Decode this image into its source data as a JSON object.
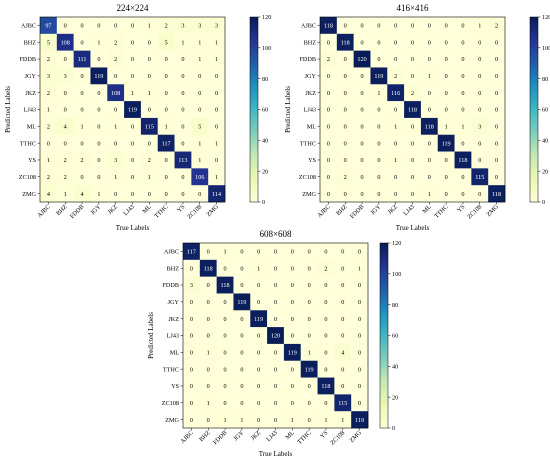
{
  "colormap": {
    "low": "#ffffd9",
    "mid1": "#edf8b1",
    "mid2": "#c7e9b4",
    "mid3": "#7fcdbb",
    "mid4": "#41b6c4",
    "mid5": "#1d91c0",
    "mid6": "#225ea8",
    "mid7": "#253494",
    "high": "#081d58"
  },
  "chart_data": [
    {
      "type": "heatmap",
      "title": "224×224",
      "xlabel": "True Labels",
      "ylabel": "Predicted Labels",
      "labels": [
        "AJBC",
        "BHZ",
        "FDDB",
        "JGY",
        "JKZ",
        "LJ43",
        "ML",
        "TTHC",
        "YS",
        "ZC108",
        "ZMG"
      ],
      "vmin": 0,
      "vmax": 120,
      "colorbar_ticks": [
        0,
        20,
        40,
        60,
        80,
        100,
        120
      ],
      "matrix": [
        [
          97,
          0,
          0,
          0,
          0,
          0,
          1,
          2,
          3,
          3,
          3
        ],
        [
          5,
          108,
          0,
          1,
          2,
          0,
          0,
          5,
          1,
          1,
          1
        ],
        [
          2,
          0,
          111,
          0,
          2,
          0,
          0,
          0,
          0,
          1,
          1
        ],
        [
          3,
          3,
          0,
          119,
          0,
          0,
          0,
          0,
          0,
          0,
          0
        ],
        [
          2,
          0,
          0,
          0,
          108,
          1,
          1,
          0,
          0,
          0,
          0
        ],
        [
          1,
          0,
          0,
          0,
          0,
          119,
          0,
          0,
          0,
          0,
          0
        ],
        [
          2,
          4,
          1,
          0,
          1,
          0,
          115,
          1,
          0,
          5,
          0
        ],
        [
          0,
          0,
          0,
          0,
          0,
          0,
          0,
          117,
          0,
          1,
          1
        ],
        [
          1,
          2,
          2,
          0,
          3,
          0,
          2,
          0,
          113,
          1,
          0
        ],
        [
          2,
          2,
          0,
          0,
          1,
          0,
          1,
          0,
          0,
          106,
          1
        ],
        [
          4,
          1,
          4,
          1,
          0,
          0,
          0,
          0,
          0,
          0,
          114
        ]
      ]
    },
    {
      "type": "heatmap",
      "title": "416×416",
      "xlabel": "True Labels",
      "ylabel": "Predicted Labels",
      "labels": [
        "AJBC",
        "BHZ",
        "FDDB",
        "JGY",
        "JKZ",
        "LJ43",
        "ML",
        "TTHC",
        "YS",
        "ZC108",
        "ZMG"
      ],
      "vmin": 0,
      "vmax": 120,
      "colorbar_ticks": [
        0,
        20,
        40,
        60,
        80,
        100,
        120
      ],
      "matrix": [
        [
          118,
          0,
          0,
          0,
          0,
          0,
          0,
          0,
          0,
          1,
          2
        ],
        [
          0,
          118,
          0,
          0,
          0,
          0,
          0,
          0,
          0,
          0,
          0
        ],
        [
          2,
          0,
          120,
          0,
          0,
          0,
          0,
          0,
          0,
          0,
          0
        ],
        [
          0,
          0,
          0,
          119,
          2,
          0,
          1,
          0,
          0,
          0,
          0
        ],
        [
          0,
          0,
          0,
          1,
          116,
          2,
          0,
          0,
          0,
          0,
          0
        ],
        [
          0,
          0,
          0,
          0,
          0,
          118,
          0,
          0,
          0,
          0,
          0
        ],
        [
          0,
          0,
          0,
          0,
          1,
          0,
          118,
          1,
          1,
          3,
          0
        ],
        [
          0,
          0,
          0,
          0,
          0,
          0,
          0,
          119,
          0,
          0,
          0
        ],
        [
          0,
          0,
          0,
          0,
          1,
          0,
          0,
          0,
          118,
          0,
          0
        ],
        [
          0,
          2,
          0,
          0,
          0,
          0,
          0,
          0,
          0,
          115,
          0
        ],
        [
          0,
          0,
          0,
          0,
          0,
          0,
          1,
          0,
          0,
          0,
          118
        ]
      ]
    },
    {
      "type": "heatmap",
      "title": "608×608",
      "xlabel": "True Labels",
      "ylabel": "Predicted Labels",
      "labels": [
        "AJBC",
        "BHZ",
        "FDDB",
        "JGY",
        "JKZ",
        "LJ43",
        "ML",
        "TTHC",
        "YS",
        "ZC108",
        "ZMG"
      ],
      "vmin": 0,
      "vmax": 120,
      "colorbar_ticks": [
        0,
        20,
        40,
        60,
        80,
        100,
        120
      ],
      "matrix": [
        [
          117,
          0,
          1,
          0,
          0,
          0,
          0,
          0,
          0,
          0,
          0
        ],
        [
          0,
          118,
          0,
          0,
          1,
          0,
          0,
          0,
          2,
          0,
          1
        ],
        [
          3,
          0,
          118,
          0,
          0,
          0,
          0,
          0,
          0,
          0,
          0
        ],
        [
          0,
          0,
          0,
          119,
          0,
          0,
          0,
          0,
          0,
          0,
          0
        ],
        [
          0,
          0,
          0,
          0,
          119,
          0,
          0,
          0,
          0,
          0,
          0
        ],
        [
          0,
          0,
          0,
          0,
          0,
          120,
          0,
          0,
          0,
          0,
          0
        ],
        [
          0,
          1,
          0,
          0,
          0,
          0,
          119,
          1,
          0,
          4,
          0
        ],
        [
          0,
          0,
          0,
          0,
          0,
          0,
          0,
          119,
          0,
          0,
          0
        ],
        [
          0,
          0,
          0,
          0,
          0,
          0,
          0,
          0,
          118,
          0,
          0
        ],
        [
          0,
          1,
          0,
          0,
          0,
          0,
          0,
          0,
          0,
          115,
          0
        ],
        [
          0,
          0,
          1,
          1,
          0,
          0,
          1,
          0,
          1,
          1,
          119
        ]
      ]
    }
  ]
}
